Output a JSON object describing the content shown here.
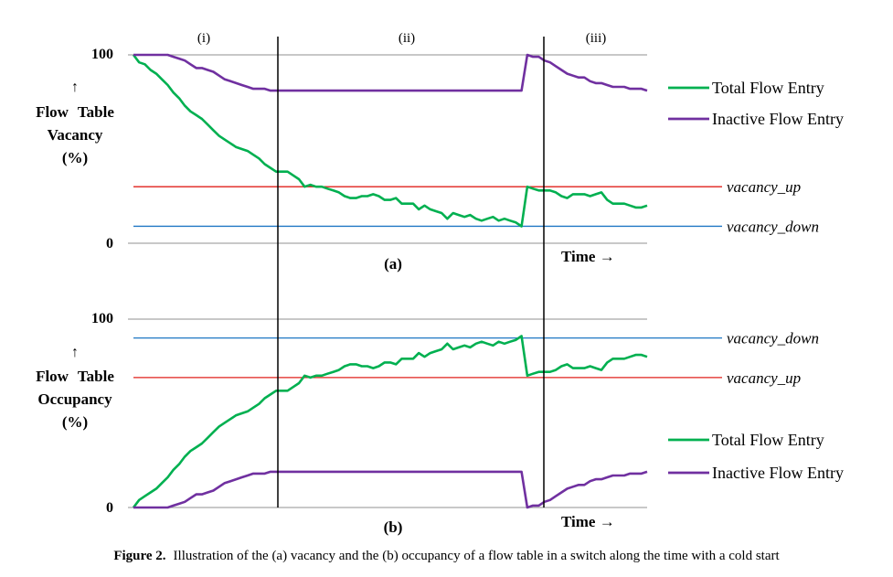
{
  "caption": {
    "label": "Figure 2.",
    "text": "Illustration of the (a) vacancy and the (b) occupancy of a flow table in a switch along the time with a cold start"
  },
  "phases": [
    "(i)",
    "(ii)",
    "(iii)"
  ],
  "colors": {
    "total": "#00b050",
    "inactive": "#7030a0",
    "vacancy_up": "#e0201b",
    "vacancy_down": "#1f77c4",
    "grid": "#a6a6a6",
    "divider": "#000000"
  },
  "chart_data": [
    {
      "type": "line",
      "panel_label": "(a)",
      "ylabel_arrow": "↑",
      "ylabel_lines": [
        "Flow Table",
        "Vacancy",
        "(%)"
      ],
      "xlabel": "Time →",
      "ylim": [
        0,
        100
      ],
      "yticks": [
        "0",
        "100"
      ],
      "grid": true,
      "legend": "right",
      "thresholds": [
        {
          "name": "vacancy_up",
          "value": 30,
          "color": "#e0201b"
        },
        {
          "name": "vacancy_down",
          "value": 9,
          "color": "#1f77c4"
        }
      ],
      "series": [
        {
          "name": "Total Flow Entry",
          "color": "#00b050",
          "values": [
            100,
            96,
            95,
            92,
            90,
            87,
            84,
            80,
            77,
            73,
            70,
            68,
            66,
            63,
            60,
            57,
            55,
            53,
            51,
            50,
            49,
            47,
            45,
            42,
            40,
            38,
            38,
            38,
            36,
            34,
            30,
            31,
            30,
            30,
            29,
            28,
            27,
            25,
            24,
            24,
            25,
            25,
            26,
            25,
            23,
            23,
            24,
            21,
            21,
            21,
            18,
            20,
            18,
            17,
            16,
            13,
            16,
            15,
            14,
            15,
            13,
            12,
            13,
            14,
            12,
            13,
            12,
            11,
            9,
            30,
            29,
            28,
            28,
            28,
            27,
            25,
            24,
            26,
            26,
            26,
            25,
            26,
            27,
            23,
            21,
            21,
            21,
            20,
            19,
            19,
            20
          ]
        },
        {
          "name": "Inactive Flow Entry",
          "color": "#7030a0",
          "values": [
            100,
            100,
            100,
            100,
            100,
            100,
            100,
            99,
            98,
            97,
            95,
            93,
            93,
            92,
            91,
            89,
            87,
            86,
            85,
            84,
            83,
            82,
            82,
            82,
            81,
            81,
            81,
            81,
            81,
            81,
            81,
            81,
            81,
            81,
            81,
            81,
            81,
            81,
            81,
            81,
            81,
            81,
            81,
            81,
            81,
            81,
            81,
            81,
            81,
            81,
            81,
            81,
            81,
            81,
            81,
            81,
            81,
            81,
            81,
            81,
            81,
            81,
            81,
            81,
            81,
            81,
            81,
            81,
            81,
            100,
            99,
            99,
            97,
            96,
            94,
            92,
            90,
            89,
            88,
            88,
            86,
            85,
            85,
            84,
            83,
            83,
            83,
            82,
            82,
            82,
            81
          ]
        }
      ]
    },
    {
      "type": "line",
      "panel_label": "(b)",
      "ylabel_arrow": "↑",
      "ylabel_lines": [
        "Flow Table",
        "Occupancy",
        "(%)"
      ],
      "xlabel": "Time →",
      "ylim": [
        0,
        100
      ],
      "yticks": [
        "0",
        "100"
      ],
      "grid": true,
      "legend": "right",
      "thresholds": [
        {
          "name": "vacancy_down",
          "value": 90,
          "color": "#1f77c4"
        },
        {
          "name": "vacancy_up",
          "value": 69,
          "color": "#e0201b"
        }
      ],
      "series": [
        {
          "name": "Total Flow Entry",
          "color": "#00b050",
          "values": [
            0,
            4,
            6,
            8,
            10,
            13,
            16,
            20,
            23,
            27,
            30,
            32,
            34,
            37,
            40,
            43,
            45,
            47,
            49,
            50,
            51,
            53,
            55,
            58,
            60,
            62,
            62,
            62,
            64,
            66,
            70,
            69,
            70,
            70,
            71,
            72,
            73,
            75,
            76,
            76,
            75,
            75,
            74,
            75,
            77,
            77,
            76,
            79,
            79,
            79,
            82,
            80,
            82,
            83,
            84,
            87,
            84,
            85,
            86,
            85,
            87,
            88,
            87,
            86,
            88,
            87,
            88,
            89,
            91,
            70,
            71,
            72,
            72,
            72,
            73,
            75,
            76,
            74,
            74,
            74,
            75,
            74,
            73,
            77,
            79,
            79,
            79,
            80,
            81,
            81,
            80
          ]
        },
        {
          "name": "Inactive Flow Entry",
          "color": "#7030a0",
          "values": [
            0,
            0,
            0,
            0,
            0,
            0,
            0,
            1,
            2,
            3,
            5,
            7,
            7,
            8,
            9,
            11,
            13,
            14,
            15,
            16,
            17,
            18,
            18,
            18,
            19,
            19,
            19,
            19,
            19,
            19,
            19,
            19,
            19,
            19,
            19,
            19,
            19,
            19,
            19,
            19,
            19,
            19,
            19,
            19,
            19,
            19,
            19,
            19,
            19,
            19,
            19,
            19,
            19,
            19,
            19,
            19,
            19,
            19,
            19,
            19,
            19,
            19,
            19,
            19,
            19,
            19,
            19,
            19,
            19,
            0,
            1,
            1,
            3,
            4,
            6,
            8,
            10,
            11,
            12,
            12,
            14,
            15,
            15,
            16,
            17,
            17,
            17,
            18,
            18,
            18,
            19
          ]
        }
      ]
    }
  ]
}
